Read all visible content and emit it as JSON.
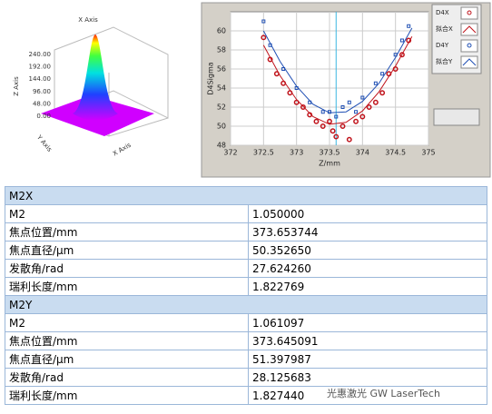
{
  "surface_plot": {
    "x_axis_label": "X Axis",
    "y_axis_label": "Y Axis",
    "z_axis_label": "Z Axis",
    "x_axis_label_bottom": "X Axis",
    "z_ticks": [
      "240.00",
      "192.00",
      "144.00",
      "96.00",
      "48.00",
      "0.00"
    ]
  },
  "chart_data": {
    "type": "scatter",
    "xlabel": "Z/mm",
    "ylabel": "D4Sigma",
    "xlim": [
      372,
      375
    ],
    "ylim": [
      48,
      62
    ],
    "xticks": [
      372,
      372.5,
      373,
      373.5,
      374,
      374.5,
      375
    ],
    "yticks": [
      48,
      50,
      52,
      54,
      56,
      58,
      60
    ],
    "cursor_x": 373.6,
    "series": [
      {
        "name": "D4X",
        "color": "#c0141c",
        "marker": "circle",
        "x": [
          372.5,
          372.6,
          372.7,
          372.8,
          372.9,
          373,
          373.1,
          373.2,
          373.3,
          373.4,
          373.5,
          373.55,
          373.6,
          373.7,
          373.8,
          373.9,
          374,
          374.1,
          374.2,
          374.3,
          374.4,
          374.5,
          374.6,
          374.7
        ],
        "values": [
          59.3,
          57,
          55.5,
          54.5,
          53.5,
          52.5,
          52,
          51.2,
          50.5,
          50,
          50.5,
          49.5,
          48.9,
          50,
          48.6,
          50.5,
          51,
          52,
          52.5,
          53.5,
          55.5,
          56,
          57.5,
          59
        ]
      },
      {
        "name": "拟合X",
        "color": "#c0141c",
        "marker": "line",
        "x": [
          372.5,
          372.75,
          373,
          373.25,
          373.5,
          373.75,
          374,
          374.25,
          374.5,
          374.75
        ],
        "values": [
          58.5,
          55.3,
          52.8,
          51,
          50.2,
          50.4,
          51.6,
          53.6,
          56.3,
          59.4
        ]
      },
      {
        "name": "D4Y",
        "color": "#1f4fb4",
        "marker": "square",
        "x": [
          372.5,
          372.6,
          372.8,
          373,
          373.2,
          373.4,
          373.5,
          373.6,
          373.7,
          373.8,
          373.9,
          374,
          374.2,
          374.3,
          374.5,
          374.6,
          374.7
        ],
        "values": [
          61,
          58.5,
          56,
          54,
          52.5,
          51.5,
          51.5,
          51,
          52,
          52.5,
          51.5,
          53,
          54.5,
          55.5,
          57.5,
          59,
          60.5
        ]
      },
      {
        "name": "拟合Y",
        "color": "#1f4fb4",
        "marker": "line",
        "x": [
          372.5,
          372.75,
          373,
          373.25,
          373.5,
          373.75,
          374,
          374.25,
          374.5,
          374.75
        ],
        "values": [
          60,
          56.8,
          54.2,
          52.3,
          51.4,
          51.5,
          52.6,
          54.5,
          57.2,
          60.3
        ]
      }
    ]
  },
  "table": {
    "sections": [
      {
        "title": "M2X",
        "rows": [
          [
            "M2",
            "1.050000"
          ],
          [
            "焦点位置/mm",
            "373.653744"
          ],
          [
            "焦点直径/μm",
            "50.352650"
          ],
          [
            "发散角/rad",
            "27.624260"
          ],
          [
            "瑞利长度/mm",
            "1.822769"
          ]
        ]
      },
      {
        "title": "M2Y",
        "rows": [
          [
            "M2",
            "1.061097"
          ],
          [
            "焦点位置/mm",
            "373.645091"
          ],
          [
            "焦点直径/μm",
            "51.397987"
          ],
          [
            "发散角/rad",
            "28.125683"
          ],
          [
            "瑞利长度/mm",
            "1.827440"
          ]
        ]
      }
    ]
  },
  "watermark": "光惠激光 GW LaserTech"
}
